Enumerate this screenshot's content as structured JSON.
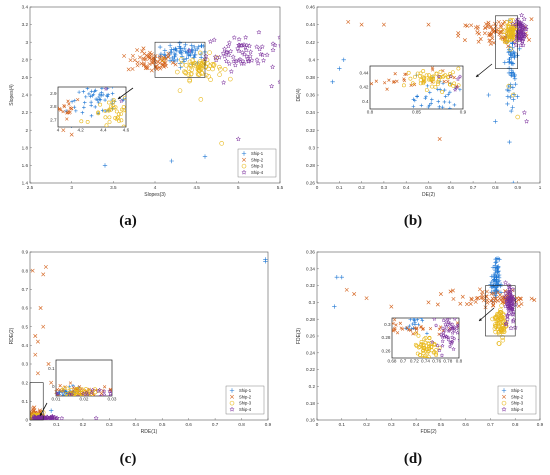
{
  "colors": {
    "ship1": "#1f77d4",
    "ship2": "#d4621c",
    "ship3": "#e8b81a",
    "ship4": "#7a2d9c"
  },
  "legend_items": [
    "Ship-1",
    "Ship-2",
    "Ship-3",
    "Ship-4"
  ],
  "chart_data": [
    {
      "caption": "(a)",
      "type": "scatter",
      "xlabel": "Slopes(3)",
      "ylabel": "Slopes(4)",
      "xlim": [
        2.5,
        5.5
      ],
      "ylim": [
        1.4,
        3.4
      ],
      "xticks": [
        "2.5",
        "3",
        "3.5",
        "4",
        "4.5",
        "5",
        "5.5"
      ],
      "yticks": [
        "1.4",
        "1.6",
        "1.8",
        "2",
        "2.2",
        "2.4",
        "2.6",
        "2.8",
        "3",
        "3.2",
        "3.4"
      ],
      "legend_position": "bottom-right",
      "series": [
        {
          "name": "Ship-1",
          "marker": "plus",
          "center": [
            4.35,
            2.87
          ],
          "spread": [
            0.14,
            0.06
          ],
          "outliers": [
            [
              3.4,
              1.6
            ],
            [
              4.2,
              1.65
            ],
            [
              4.6,
              1.7
            ],
            [
              3.0,
              2.05
            ]
          ]
        },
        {
          "name": "Ship-2",
          "marker": "x",
          "center": [
            3.95,
            2.78
          ],
          "spread": [
            0.14,
            0.06
          ],
          "outliers": [
            [
              3.0,
              1.95
            ],
            [
              2.9,
              2.0
            ],
            [
              3.6,
              2.1
            ]
          ]
        },
        {
          "name": "Ship-3",
          "marker": "circle",
          "center": [
            4.55,
            2.72
          ],
          "spread": [
            0.13,
            0.07
          ],
          "outliers": [
            [
              4.3,
              2.45
            ],
            [
              4.55,
              2.35
            ],
            [
              4.8,
              1.85
            ]
          ]
        },
        {
          "name": "Ship-4",
          "marker": "star",
          "center": [
            5.05,
            2.88
          ],
          "spread": [
            0.22,
            0.1
          ],
          "outliers": [
            [
              5.4,
              2.5
            ],
            [
              5.5,
              2.55
            ],
            [
              5.0,
              1.9
            ]
          ]
        }
      ],
      "inset": {
        "xlim": [
          4.0,
          4.6
        ],
        "ylim": [
          2.6,
          3.0
        ],
        "xticks": [
          "4",
          "4.2",
          "4.4",
          "4.6"
        ],
        "yticks": [
          "2.7",
          "2.8",
          "2.9"
        ]
      }
    },
    {
      "caption": "(b)",
      "type": "scatter",
      "xlabel": "DE(2)",
      "ylabel": "DE(4)",
      "xlim": [
        0,
        1
      ],
      "ylim": [
        0.26,
        0.46
      ],
      "xticks": [
        "0",
        "0.1",
        "0.2",
        "0.3",
        "0.4",
        "0.5",
        "0.6",
        "0.7",
        "0.8",
        "0.9",
        "1"
      ],
      "yticks": [
        "0.26",
        "0.28",
        "0.3",
        "0.32",
        "0.34",
        "0.36",
        "0.38",
        "0.4",
        "0.42",
        "0.44",
        "0.46"
      ],
      "legend_position": "none",
      "series": [
        {
          "name": "Ship-1",
          "marker": "plus",
          "center": [
            0.87,
            0.395
          ],
          "spread": [
            0.012,
            0.022
          ],
          "outliers": [
            [
              0.1,
              0.39
            ],
            [
              0.12,
              0.4
            ],
            [
              0.07,
              0.375
            ],
            [
              0.77,
              0.36
            ],
            [
              0.88,
              0.26
            ],
            [
              0.8,
              0.33
            ]
          ]
        },
        {
          "name": "Ship-2",
          "marker": "x",
          "center": [
            0.8,
            0.43
          ],
          "spread": [
            0.08,
            0.008
          ],
          "outliers": [
            [
              0.14,
              0.443
            ],
            [
              0.2,
              0.44
            ],
            [
              0.5,
              0.44
            ],
            [
              0.55,
              0.31
            ],
            [
              0.3,
              0.44
            ]
          ]
        },
        {
          "name": "Ship-3",
          "marker": "circle",
          "center": [
            0.87,
            0.432
          ],
          "spread": [
            0.015,
            0.007
          ],
          "outliers": [
            [
              0.9,
              0.335
            ],
            [
              0.86,
              0.37
            ],
            [
              0.88,
              0.36
            ]
          ]
        },
        {
          "name": "Ship-4",
          "marker": "star",
          "center": [
            0.91,
            0.432
          ],
          "spread": [
            0.012,
            0.008
          ],
          "outliers": [
            [
              0.94,
              0.33
            ],
            [
              0.93,
              0.34
            ]
          ]
        }
      ],
      "inset": {
        "xlim": [
          0.8,
          0.9
        ],
        "ylim": [
          0.39,
          0.45
        ],
        "xticks": [
          "0.8",
          "0.85",
          "0.9"
        ],
        "yticks": [
          "0.4",
          "0.42",
          "0.44"
        ]
      }
    },
    {
      "caption": "(c)",
      "type": "scatter",
      "xlabel": "RDE(1)",
      "ylabel": "RDE(2)",
      "xlim": [
        0,
        0.9
      ],
      "ylim": [
        0,
        0.9
      ],
      "xticks": [
        "0",
        "0.1",
        "0.2",
        "0.3",
        "0.4",
        "0.5",
        "0.6",
        "0.7",
        "0.8",
        "0.9"
      ],
      "yticks": [
        "0",
        "0.1",
        "0.2",
        "0.3",
        "0.4",
        "0.5",
        "0.6",
        "0.7",
        "0.8",
        "0.9"
      ],
      "legend_position": "bottom-right",
      "series": [
        {
          "name": "Ship-1",
          "marker": "plus",
          "center": [
            0.01,
            0.01
          ],
          "spread": [
            0.006,
            0.006
          ],
          "outliers": [
            [
              0.89,
              0.86
            ],
            [
              0.89,
              0.85
            ],
            [
              0.08,
              0.05
            ],
            [
              0.0,
              0.02
            ]
          ]
        },
        {
          "name": "Ship-2",
          "marker": "x",
          "center": [
            0.02,
            0.02
          ],
          "spread": [
            0.015,
            0.02
          ],
          "outliers": [
            [
              0.01,
              0.8
            ],
            [
              0.06,
              0.82
            ],
            [
              0.05,
              0.78
            ],
            [
              0.04,
              0.6
            ],
            [
              0.05,
              0.5
            ],
            [
              0.02,
              0.35
            ],
            [
              0.03,
              0.42
            ],
            [
              0.07,
              0.3
            ],
            [
              0.02,
              0.45
            ],
            [
              0.03,
              0.25
            ],
            [
              0.1,
              0.15
            ],
            [
              0.08,
              0.2
            ]
          ]
        },
        {
          "name": "Ship-3",
          "marker": "circle",
          "center": [
            0.02,
            0.015
          ],
          "spread": [
            0.008,
            0.008
          ],
          "outliers": [
            [
              0.05,
              0.04
            ]
          ]
        },
        {
          "name": "Ship-4",
          "marker": "star",
          "center": [
            0.05,
            0.01
          ],
          "spread": [
            0.03,
            0.004
          ],
          "outliers": [
            [
              0.25,
              0.01
            ]
          ]
        }
      ],
      "inset": {
        "xlim": [
          0.0,
          0.05
        ],
        "ylim": [
          0.0,
          0.2
        ],
        "xticks": [
          "0.01",
          "0.02",
          "0.03"
        ],
        "yticks": [
          "0",
          "0.1"
        ]
      }
    },
    {
      "caption": "(d)",
      "type": "scatter",
      "xlabel": "FDE(2)",
      "ylabel": "FDE(3)",
      "xlim": [
        0,
        0.9
      ],
      "ylim": [
        0.16,
        0.36
      ],
      "xticks": [
        "0",
        "0.1",
        "0.2",
        "0.3",
        "0.4",
        "0.5",
        "0.6",
        "0.7",
        "0.8",
        "0.9"
      ],
      "yticks": [
        "0.16",
        "0.18",
        "0.2",
        "0.22",
        "0.24",
        "0.26",
        "0.28",
        "0.3",
        "0.32",
        "0.34",
        "0.36"
      ],
      "legend_position": "bottom-right",
      "series": [
        {
          "name": "Ship-1",
          "marker": "plus",
          "center": [
            0.72,
            0.325
          ],
          "spread": [
            0.008,
            0.013
          ],
          "outliers": [
            [
              0.07,
              0.295
            ],
            [
              0.08,
              0.33
            ],
            [
              0.1,
              0.33
            ]
          ]
        },
        {
          "name": "Ship-2",
          "marker": "x",
          "center": [
            0.72,
            0.305
          ],
          "spread": [
            0.07,
            0.005
          ],
          "outliers": [
            [
              0.12,
              0.315
            ],
            [
              0.15,
              0.31
            ],
            [
              0.2,
              0.305
            ],
            [
              0.3,
              0.295
            ],
            [
              0.45,
              0.3
            ],
            [
              0.5,
              0.31
            ]
          ]
        },
        {
          "name": "Ship-3",
          "marker": "circle",
          "center": [
            0.74,
            0.275
          ],
          "spread": [
            0.012,
            0.01
          ],
          "outliers": [
            [
              0.75,
              0.255
            ]
          ]
        },
        {
          "name": "Ship-4",
          "marker": "star",
          "center": [
            0.78,
            0.3
          ],
          "spread": [
            0.01,
            0.012
          ],
          "outliers": [
            [
              0.8,
              0.27
            ]
          ]
        }
      ],
      "inset": {
        "xlim": [
          0.68,
          0.8
        ],
        "ylim": [
          0.26,
          0.32
        ],
        "xticks": [
          "0.68",
          "0.7",
          "0.72",
          "0.74",
          "0.76",
          "0.78",
          "0.8"
        ],
        "yticks": [
          "0.26",
          "0.28",
          "0.3"
        ]
      }
    }
  ]
}
